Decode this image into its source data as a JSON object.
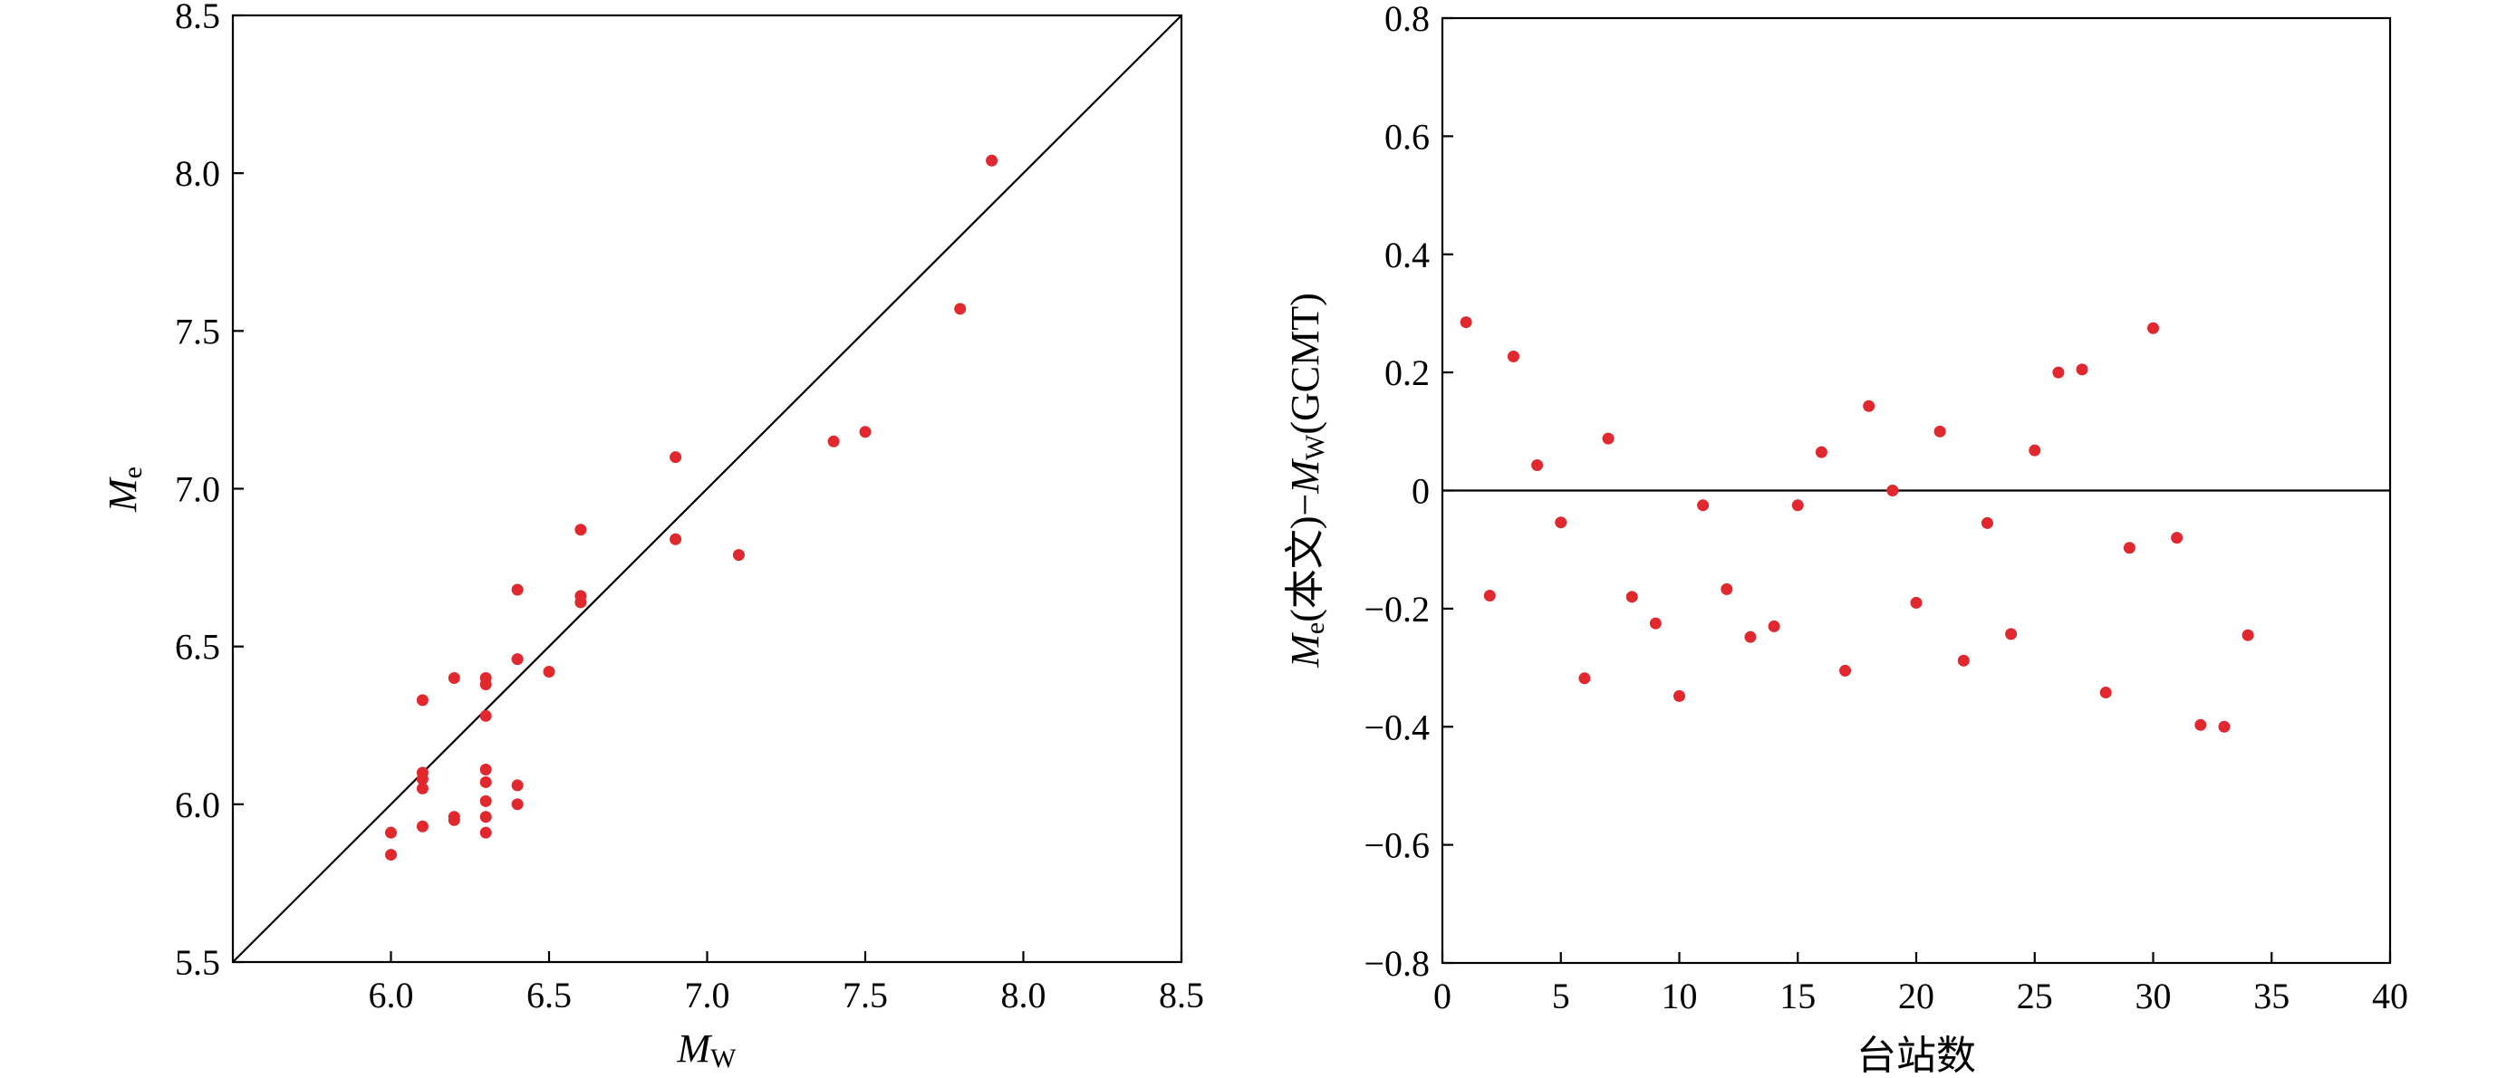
{
  "colors": {
    "point": "#e0282e",
    "axis": "#000000"
  },
  "chart_data": [
    {
      "type": "scatter",
      "xlabel": {
        "main": "M",
        "sub": "W"
      },
      "ylabel": {
        "main": "M",
        "sub": "e"
      },
      "xlim": [
        5.5,
        8.5
      ],
      "ylim": [
        5.5,
        8.5
      ],
      "x_ticks": [
        6.0,
        6.5,
        7.0,
        7.5,
        8.0,
        8.5
      ],
      "x_tick_labels": [
        "6.0",
        "6.5",
        "7.0",
        "7.5",
        "8.0",
        "8.5"
      ],
      "y_ticks": [
        5.5,
        6.0,
        6.5,
        7.0,
        7.5,
        8.0,
        8.5
      ],
      "y_tick_labels": [
        "5.5",
        "6.0",
        "6.5",
        "7.0",
        "7.5",
        "8.0",
        "8.5"
      ],
      "reference_line": "y = x",
      "grid": false,
      "points": [
        [
          6.0,
          5.91
        ],
        [
          6.0,
          5.84
        ],
        [
          6.1,
          6.33
        ],
        [
          6.1,
          6.1
        ],
        [
          6.1,
          6.08
        ],
        [
          6.1,
          6.05
        ],
        [
          6.1,
          5.93
        ],
        [
          6.2,
          6.4
        ],
        [
          6.2,
          5.96
        ],
        [
          6.2,
          5.95
        ],
        [
          6.3,
          6.4
        ],
        [
          6.3,
          6.38
        ],
        [
          6.3,
          6.28
        ],
        [
          6.3,
          6.11
        ],
        [
          6.3,
          6.07
        ],
        [
          6.3,
          6.01
        ],
        [
          6.3,
          5.96
        ],
        [
          6.3,
          5.91
        ],
        [
          6.4,
          6.68
        ],
        [
          6.4,
          6.46
        ],
        [
          6.4,
          6.06
        ],
        [
          6.4,
          6.0
        ],
        [
          6.5,
          6.42
        ],
        [
          6.6,
          6.87
        ],
        [
          6.6,
          6.66
        ],
        [
          6.6,
          6.64
        ],
        [
          6.9,
          7.1
        ],
        [
          6.9,
          6.84
        ],
        [
          7.1,
          6.79
        ],
        [
          7.4,
          7.15
        ],
        [
          7.5,
          7.18
        ],
        [
          7.8,
          7.57
        ],
        [
          7.9,
          8.04
        ]
      ]
    },
    {
      "type": "scatter",
      "xlabel": "台站数",
      "ylabel": {
        "main": "M",
        "sub": "e",
        "middle": "(本文)−",
        "main2": "M",
        "sub2": "W",
        "tail": "(GCMT)"
      },
      "xlim": [
        0,
        40
      ],
      "ylim": [
        -0.8,
        0.8
      ],
      "x_ticks": [
        0,
        5,
        10,
        15,
        20,
        25,
        30,
        35,
        40
      ],
      "x_tick_labels": [
        "0",
        "5",
        "10",
        "15",
        "20",
        "25",
        "30",
        "35",
        "40"
      ],
      "y_ticks": [
        0.8,
        0.6,
        0.4,
        0.2,
        0,
        -0.2,
        -0.4,
        -0.6,
        -0.8
      ],
      "y_tick_labels": [
        "0.8",
        "0.6",
        "0.4",
        "0.2",
        "0",
        "−0.2",
        "−0.4",
        "−0.6",
        "−0.8"
      ],
      "reference_line": "y = 0",
      "grid": false,
      "points": [
        [
          1,
          0.285
        ],
        [
          2,
          -0.178
        ],
        [
          3,
          0.227
        ],
        [
          4,
          0.043
        ],
        [
          5,
          -0.054
        ],
        [
          6,
          -0.318
        ],
        [
          7,
          0.088
        ],
        [
          8,
          -0.18
        ],
        [
          9,
          -0.225
        ],
        [
          10,
          -0.348
        ],
        [
          11,
          -0.025
        ],
        [
          12,
          -0.167
        ],
        [
          13,
          -0.248
        ],
        [
          14,
          -0.23
        ],
        [
          15,
          -0.025
        ],
        [
          16,
          0.065
        ],
        [
          17,
          -0.305
        ],
        [
          18,
          0.143
        ],
        [
          19,
          0.0
        ],
        [
          20,
          -0.19
        ],
        [
          21,
          0.1
        ],
        [
          22,
          -0.288
        ],
        [
          23,
          -0.055
        ],
        [
          24,
          -0.243
        ],
        [
          25,
          0.068
        ],
        [
          26,
          0.2
        ],
        [
          27,
          0.205
        ],
        [
          28,
          -0.342
        ],
        [
          29,
          -0.097
        ],
        [
          30,
          0.275
        ],
        [
          31,
          -0.08
        ],
        [
          32,
          -0.397
        ],
        [
          33,
          -0.4
        ],
        [
          34,
          -0.245
        ]
      ]
    }
  ]
}
